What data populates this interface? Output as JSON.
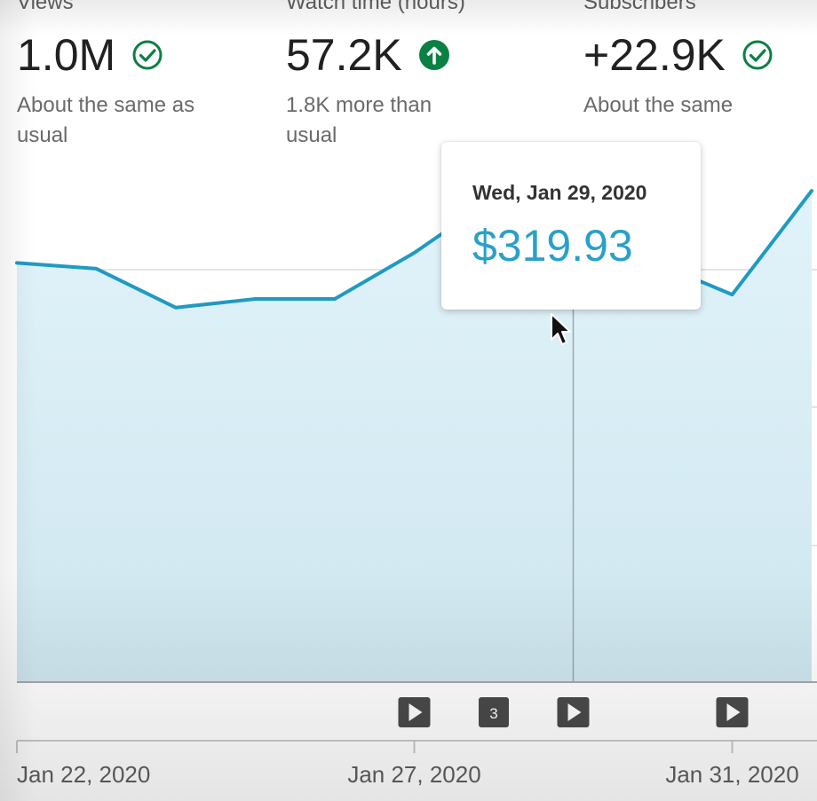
{
  "metrics": {
    "views": {
      "label": "Views",
      "value": "1.0M",
      "description": "About the same as usual",
      "icon": "check-circle-icon"
    },
    "watch_time": {
      "label": "Watch time (hours)",
      "value": "57.2K",
      "description": "1.8K more than usual",
      "icon": "arrow-up-circle-icon"
    },
    "subscribers": {
      "label": "Subscribers",
      "value": "+22.9K",
      "description": "About the same",
      "icon": "check-circle-icon"
    }
  },
  "tooltip": {
    "date": "Wed, Jan 29, 2020",
    "value": "$319.93"
  },
  "colors": {
    "line": "#1f9ac3",
    "fill": "#dff1f8",
    "success": "#0b8043",
    "tooltip_value": "#2aa0c9"
  },
  "chart_data": {
    "type": "area",
    "x_tick_labels": [
      "Jan 22, 2020",
      "Jan 27, 2020",
      "Jan 31, 2020"
    ],
    "x": [
      "Jan 22",
      "Jan 23",
      "Jan 24",
      "Jan 25",
      "Jan 26",
      "Jan 27",
      "Jan 28",
      "Jan 29",
      "Jan 30",
      "Jan 31",
      "Feb 1"
    ],
    "series": [
      {
        "values": [
          290,
          286,
          259,
          265,
          265,
          297,
          335,
          320,
          291,
          268,
          340
        ]
      }
    ],
    "ylim": [
      0,
      380
    ],
    "grid": true,
    "highlighted_point": {
      "x": "Jan 29",
      "y": 319.93
    },
    "markers": [
      {
        "x": "Jan 27",
        "type": "play-icon"
      },
      {
        "x": "Jan 28",
        "type": "count",
        "label": "3"
      },
      {
        "x": "Jan 29",
        "type": "play-icon"
      },
      {
        "x": "Jan 31",
        "type": "play-icon"
      }
    ]
  }
}
